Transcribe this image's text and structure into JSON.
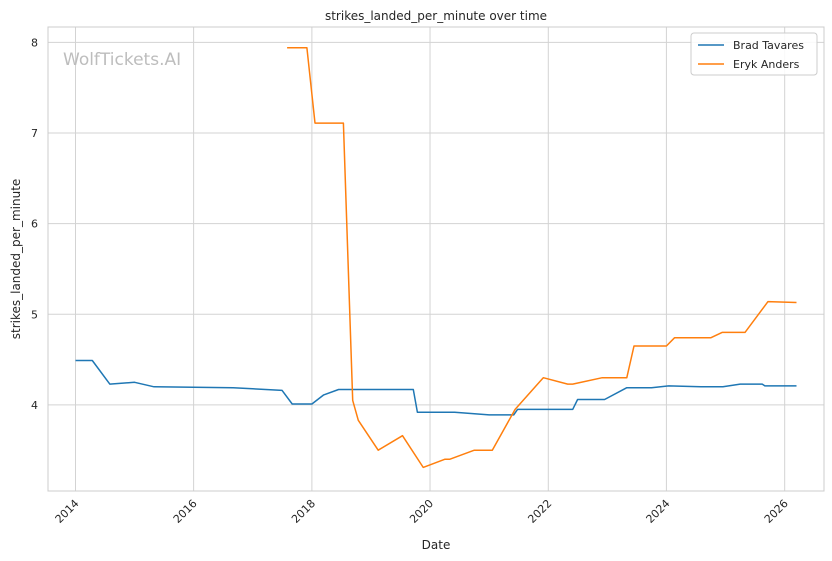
{
  "watermark": "WolfTickets.AI",
  "chart_data": {
    "type": "line",
    "title": "strikes_landed_per_minute over time",
    "xlabel": "Date",
    "ylabel": "strikes_landed_per_minute",
    "xlim": [
      "2013-07-15",
      "2026-09-01"
    ],
    "ylim": [
      3.05,
      8.17
    ],
    "x_ticks": [
      "2014",
      "2016",
      "2018",
      "2020",
      "2022",
      "2024",
      "2026"
    ],
    "y_ticks": [
      "4",
      "5",
      "6",
      "7",
      "8"
    ],
    "grid": true,
    "legend_position": "top-right",
    "series": [
      {
        "name": "Brad Tavares",
        "color": "#1f77b4",
        "points": [
          [
            "2014-01-01",
            4.49
          ],
          [
            "2014-04-15",
            4.49
          ],
          [
            "2014-08-01",
            4.23
          ],
          [
            "2015-01-01",
            4.25
          ],
          [
            "2015-05-01",
            4.2
          ],
          [
            "2016-09-01",
            4.19
          ],
          [
            "2017-07-01",
            4.16
          ],
          [
            "2017-09-01",
            4.01
          ],
          [
            "2018-01-01",
            4.01
          ],
          [
            "2018-03-15",
            4.11
          ],
          [
            "2018-06-15",
            4.17
          ],
          [
            "2019-09-20",
            4.17
          ],
          [
            "2019-10-15",
            3.92
          ],
          [
            "2020-06-01",
            3.92
          ],
          [
            "2021-01-01",
            3.89
          ],
          [
            "2021-06-01",
            3.89
          ],
          [
            "2021-06-25",
            3.95
          ],
          [
            "2022-03-15",
            3.95
          ],
          [
            "2022-06-01",
            3.95
          ],
          [
            "2022-07-01",
            4.06
          ],
          [
            "2022-12-15",
            4.06
          ],
          [
            "2023-05-01",
            4.19
          ],
          [
            "2023-10-01",
            4.19
          ],
          [
            "2024-01-15",
            4.21
          ],
          [
            "2024-08-01",
            4.2
          ],
          [
            "2024-12-15",
            4.2
          ],
          [
            "2025-04-01",
            4.23
          ],
          [
            "2025-08-15",
            4.23
          ],
          [
            "2025-09-01",
            4.21
          ],
          [
            "2026-03-15",
            4.21
          ]
        ]
      },
      {
        "name": "Eryk Anders",
        "color": "#ff7f0e",
        "points": [
          [
            "2017-08-01",
            7.94
          ],
          [
            "2017-12-01",
            7.94
          ],
          [
            "2018-01-20",
            7.11
          ],
          [
            "2018-07-15",
            7.11
          ],
          [
            "2018-09-10",
            4.05
          ],
          [
            "2018-10-15",
            3.83
          ],
          [
            "2019-02-15",
            3.5
          ],
          [
            "2019-07-15",
            3.66
          ],
          [
            "2019-11-20",
            3.31
          ],
          [
            "2020-04-01",
            3.4
          ],
          [
            "2020-05-01",
            3.4
          ],
          [
            "2020-10-01",
            3.5
          ],
          [
            "2021-01-20",
            3.5
          ],
          [
            "2021-06-10",
            3.95
          ],
          [
            "2021-12-01",
            4.3
          ],
          [
            "2022-05-01",
            4.23
          ],
          [
            "2022-06-01",
            4.23
          ],
          [
            "2022-12-01",
            4.3
          ],
          [
            "2023-05-01",
            4.3
          ],
          [
            "2023-06-15",
            4.65
          ],
          [
            "2024-01-01",
            4.65
          ],
          [
            "2024-02-20",
            4.74
          ],
          [
            "2024-10-01",
            4.74
          ],
          [
            "2024-12-10",
            4.8
          ],
          [
            "2025-05-01",
            4.8
          ],
          [
            "2025-09-20",
            5.14
          ],
          [
            "2026-03-15",
            5.13
          ]
        ]
      }
    ]
  }
}
